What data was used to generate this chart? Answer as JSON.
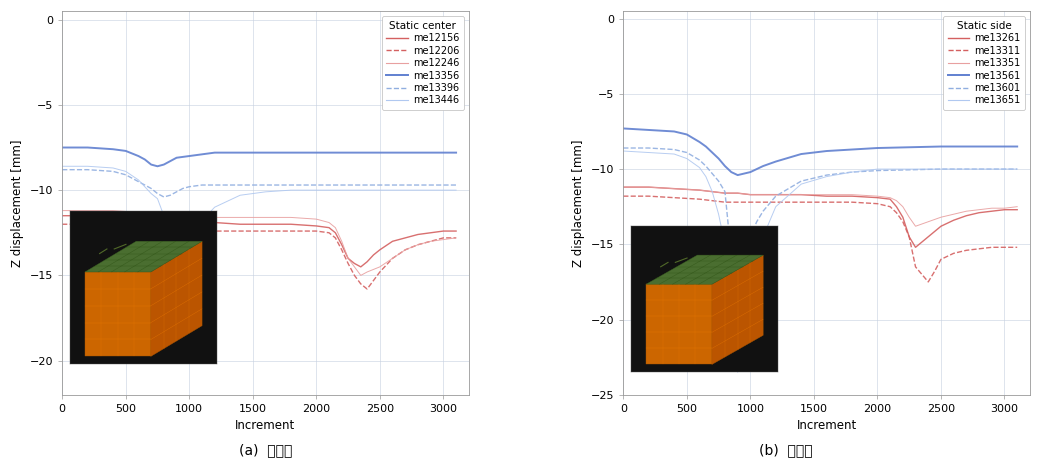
{
  "left_title": "Static center",
  "right_title": "Static side",
  "xlabel": "Increment",
  "ylabel": "Z displacement [mm]",
  "left_ylim": [
    -22,
    0.5
  ],
  "right_ylim": [
    -25,
    0.5
  ],
  "left_yticks": [
    0,
    -5,
    -10,
    -15,
    -20
  ],
  "right_yticks": [
    0,
    -5,
    -10,
    -15,
    -20,
    -25
  ],
  "xlim": [
    0,
    3200
  ],
  "xticks": [
    0,
    500,
    1000,
    1500,
    2000,
    2500,
    3000
  ],
  "caption_left": "(a)  중앙부",
  "caption_right": "(b)  주변부",
  "left_series": [
    {
      "label": "me12156",
      "color": "#d46060",
      "linestyle": "-",
      "linewidth": 1.0,
      "x": [
        0,
        200,
        400,
        600,
        700,
        800,
        900,
        1000,
        1100,
        1200,
        1400,
        1600,
        1800,
        2000,
        2100,
        2150,
        2200,
        2250,
        2300,
        2350,
        2400,
        2450,
        2500,
        2600,
        2700,
        2800,
        2900,
        3000,
        3100
      ],
      "y": [
        -11.5,
        -11.5,
        -11.5,
        -11.6,
        -11.7,
        -11.8,
        -11.8,
        -11.8,
        -11.9,
        -11.9,
        -12.0,
        -12.0,
        -12.0,
        -12.1,
        -12.2,
        -12.5,
        -13.2,
        -14.0,
        -14.3,
        -14.5,
        -14.2,
        -13.8,
        -13.5,
        -13.0,
        -12.8,
        -12.6,
        -12.5,
        -12.4,
        -12.4
      ]
    },
    {
      "label": "me12206",
      "color": "#d46060",
      "linestyle": "--",
      "linewidth": 1.0,
      "x": [
        0,
        200,
        400,
        600,
        700,
        800,
        900,
        1000,
        1200,
        1400,
        1600,
        1800,
        2000,
        2100,
        2150,
        2200,
        2250,
        2300,
        2350,
        2400,
        2500,
        2600,
        2700,
        2800,
        2900,
        3000,
        3100
      ],
      "y": [
        -12.0,
        -12.0,
        -12.0,
        -12.1,
        -12.2,
        -12.3,
        -12.3,
        -12.3,
        -12.4,
        -12.4,
        -12.4,
        -12.4,
        -12.4,
        -12.5,
        -12.8,
        -13.5,
        -14.3,
        -15.0,
        -15.5,
        -15.8,
        -14.8,
        -14.0,
        -13.5,
        -13.2,
        -13.0,
        -12.8,
        -12.8
      ]
    },
    {
      "label": "me12246",
      "color": "#e8a0a0",
      "linestyle": "-",
      "linewidth": 0.7,
      "x": [
        0,
        200,
        400,
        600,
        700,
        800,
        900,
        1000,
        1100,
        1200,
        1400,
        1600,
        1800,
        2000,
        2100,
        2150,
        2200,
        2250,
        2300,
        2350,
        2400,
        2500,
        2600,
        2700,
        2800,
        2900,
        3000,
        3100
      ],
      "y": [
        -11.2,
        -11.2,
        -11.2,
        -11.3,
        -11.4,
        -11.5,
        -11.5,
        -11.5,
        -11.6,
        -11.6,
        -11.6,
        -11.6,
        -11.6,
        -11.7,
        -11.9,
        -12.2,
        -13.0,
        -14.0,
        -14.5,
        -15.0,
        -14.8,
        -14.5,
        -14.0,
        -13.5,
        -13.2,
        -13.0,
        -12.9,
        -12.8
      ]
    },
    {
      "label": "me13356",
      "color": "#6080d0",
      "linestyle": "-",
      "linewidth": 1.4,
      "x": [
        0,
        200,
        400,
        500,
        600,
        650,
        700,
        750,
        800,
        850,
        900,
        1000,
        1100,
        1200,
        1400,
        1600,
        1800,
        2000,
        2500,
        3100
      ],
      "y": [
        -7.5,
        -7.5,
        -7.6,
        -7.7,
        -8.0,
        -8.2,
        -8.5,
        -8.6,
        -8.5,
        -8.3,
        -8.1,
        -8.0,
        -7.9,
        -7.8,
        -7.8,
        -7.8,
        -7.8,
        -7.8,
        -7.8,
        -7.8
      ]
    },
    {
      "label": "me13396",
      "color": "#90aee0",
      "linestyle": "--",
      "linewidth": 1.0,
      "x": [
        0,
        200,
        400,
        500,
        600,
        650,
        700,
        750,
        800,
        850,
        900,
        950,
        1000,
        1100,
        1200,
        1400,
        1600,
        1800,
        2000,
        2500,
        3100
      ],
      "y": [
        -8.8,
        -8.8,
        -8.9,
        -9.1,
        -9.5,
        -9.7,
        -9.9,
        -10.2,
        -10.4,
        -10.3,
        -10.1,
        -9.9,
        -9.8,
        -9.7,
        -9.7,
        -9.7,
        -9.7,
        -9.7,
        -9.7,
        -9.7,
        -9.7
      ]
    },
    {
      "label": "me13446",
      "color": "#b0c8f0",
      "linestyle": "-",
      "linewidth": 0.7,
      "x": [
        0,
        200,
        400,
        500,
        600,
        650,
        700,
        750,
        800,
        850,
        900,
        950,
        1000,
        1050,
        1100,
        1200,
        1400,
        1600,
        1800,
        2000,
        2500,
        3100
      ],
      "y": [
        -8.6,
        -8.6,
        -8.7,
        -8.9,
        -9.4,
        -9.8,
        -10.2,
        -10.5,
        -11.5,
        -13.5,
        -14.2,
        -13.8,
        -13.2,
        -12.5,
        -11.8,
        -11.0,
        -10.3,
        -10.1,
        -10.0,
        -10.0,
        -10.0,
        -10.0
      ]
    }
  ],
  "right_series": [
    {
      "label": "me13261",
      "color": "#d46060",
      "linestyle": "-",
      "linewidth": 1.0,
      "x": [
        0,
        200,
        400,
        600,
        700,
        800,
        900,
        1000,
        1200,
        1400,
        1600,
        1800,
        2000,
        2100,
        2150,
        2200,
        2250,
        2300,
        2400,
        2500,
        2600,
        2700,
        2800,
        2900,
        3000,
        3100
      ],
      "y": [
        -11.2,
        -11.2,
        -11.3,
        -11.4,
        -11.5,
        -11.6,
        -11.6,
        -11.7,
        -11.7,
        -11.7,
        -11.8,
        -11.8,
        -11.9,
        -12.0,
        -12.5,
        -13.2,
        -14.5,
        -15.2,
        -14.5,
        -13.8,
        -13.4,
        -13.1,
        -12.9,
        -12.8,
        -12.7,
        -12.7
      ]
    },
    {
      "label": "me13311",
      "color": "#d46060",
      "linestyle": "--",
      "linewidth": 1.0,
      "x": [
        0,
        200,
        400,
        600,
        700,
        800,
        900,
        1000,
        1200,
        1400,
        1600,
        1800,
        2000,
        2100,
        2150,
        2200,
        2250,
        2300,
        2350,
        2400,
        2450,
        2500,
        2600,
        2700,
        2800,
        2900,
        3000,
        3100
      ],
      "y": [
        -11.8,
        -11.8,
        -11.9,
        -12.0,
        -12.1,
        -12.2,
        -12.2,
        -12.2,
        -12.2,
        -12.2,
        -12.2,
        -12.2,
        -12.3,
        -12.5,
        -12.9,
        -13.5,
        -14.5,
        -16.5,
        -17.0,
        -17.5,
        -16.8,
        -16.0,
        -15.6,
        -15.4,
        -15.3,
        -15.2,
        -15.2,
        -15.2
      ]
    },
    {
      "label": "me13351",
      "color": "#e8a0a0",
      "linestyle": "-",
      "linewidth": 0.7,
      "x": [
        0,
        200,
        400,
        600,
        700,
        800,
        900,
        1000,
        1200,
        1400,
        1600,
        1800,
        2000,
        2100,
        2150,
        2200,
        2250,
        2300,
        2400,
        2500,
        2600,
        2700,
        2800,
        2900,
        3000,
        3100
      ],
      "y": [
        -11.2,
        -11.2,
        -11.3,
        -11.4,
        -11.5,
        -11.6,
        -11.6,
        -11.7,
        -11.7,
        -11.7,
        -11.7,
        -11.7,
        -11.8,
        -11.9,
        -12.1,
        -12.5,
        -13.2,
        -13.8,
        -13.5,
        -13.2,
        -13.0,
        -12.8,
        -12.7,
        -12.6,
        -12.6,
        -12.5
      ]
    },
    {
      "label": "me13561",
      "color": "#6080d0",
      "linestyle": "-",
      "linewidth": 1.4,
      "x": [
        0,
        200,
        400,
        500,
        600,
        650,
        700,
        750,
        800,
        850,
        900,
        950,
        1000,
        1050,
        1100,
        1200,
        1400,
        1600,
        1800,
        2000,
        2500,
        3100
      ],
      "y": [
        -7.3,
        -7.4,
        -7.5,
        -7.7,
        -8.2,
        -8.5,
        -8.9,
        -9.3,
        -9.8,
        -10.2,
        -10.4,
        -10.3,
        -10.2,
        -10.0,
        -9.8,
        -9.5,
        -9.0,
        -8.8,
        -8.7,
        -8.6,
        -8.5,
        -8.5
      ]
    },
    {
      "label": "me13601",
      "color": "#90aee0",
      "linestyle": "--",
      "linewidth": 1.0,
      "x": [
        0,
        200,
        400,
        500,
        600,
        650,
        700,
        750,
        800,
        850,
        900,
        950,
        1000,
        1050,
        1100,
        1200,
        1400,
        1600,
        1800,
        2000,
        2500,
        3100
      ],
      "y": [
        -8.6,
        -8.6,
        -8.7,
        -8.9,
        -9.4,
        -9.8,
        -10.3,
        -10.8,
        -11.5,
        -15.8,
        -16.2,
        -15.5,
        -14.5,
        -13.5,
        -12.8,
        -11.8,
        -10.8,
        -10.4,
        -10.2,
        -10.1,
        -10.0,
        -10.0
      ]
    },
    {
      "label": "me13651",
      "color": "#b0c8f0",
      "linestyle": "-",
      "linewidth": 0.7,
      "x": [
        0,
        200,
        400,
        500,
        600,
        650,
        700,
        750,
        800,
        820,
        840,
        860,
        880,
        900,
        950,
        1000,
        1050,
        1100,
        1200,
        1400,
        1600,
        1800,
        2000,
        2500,
        3100
      ],
      "y": [
        -8.8,
        -8.9,
        -9.0,
        -9.3,
        -9.9,
        -10.5,
        -11.5,
        -13.0,
        -15.0,
        -16.5,
        -18.5,
        -20.0,
        -22.0,
        -23.5,
        -22.5,
        -20.0,
        -17.0,
        -14.5,
        -12.5,
        -11.0,
        -10.5,
        -10.2,
        -10.0,
        -10.0,
        -10.0
      ]
    }
  ]
}
